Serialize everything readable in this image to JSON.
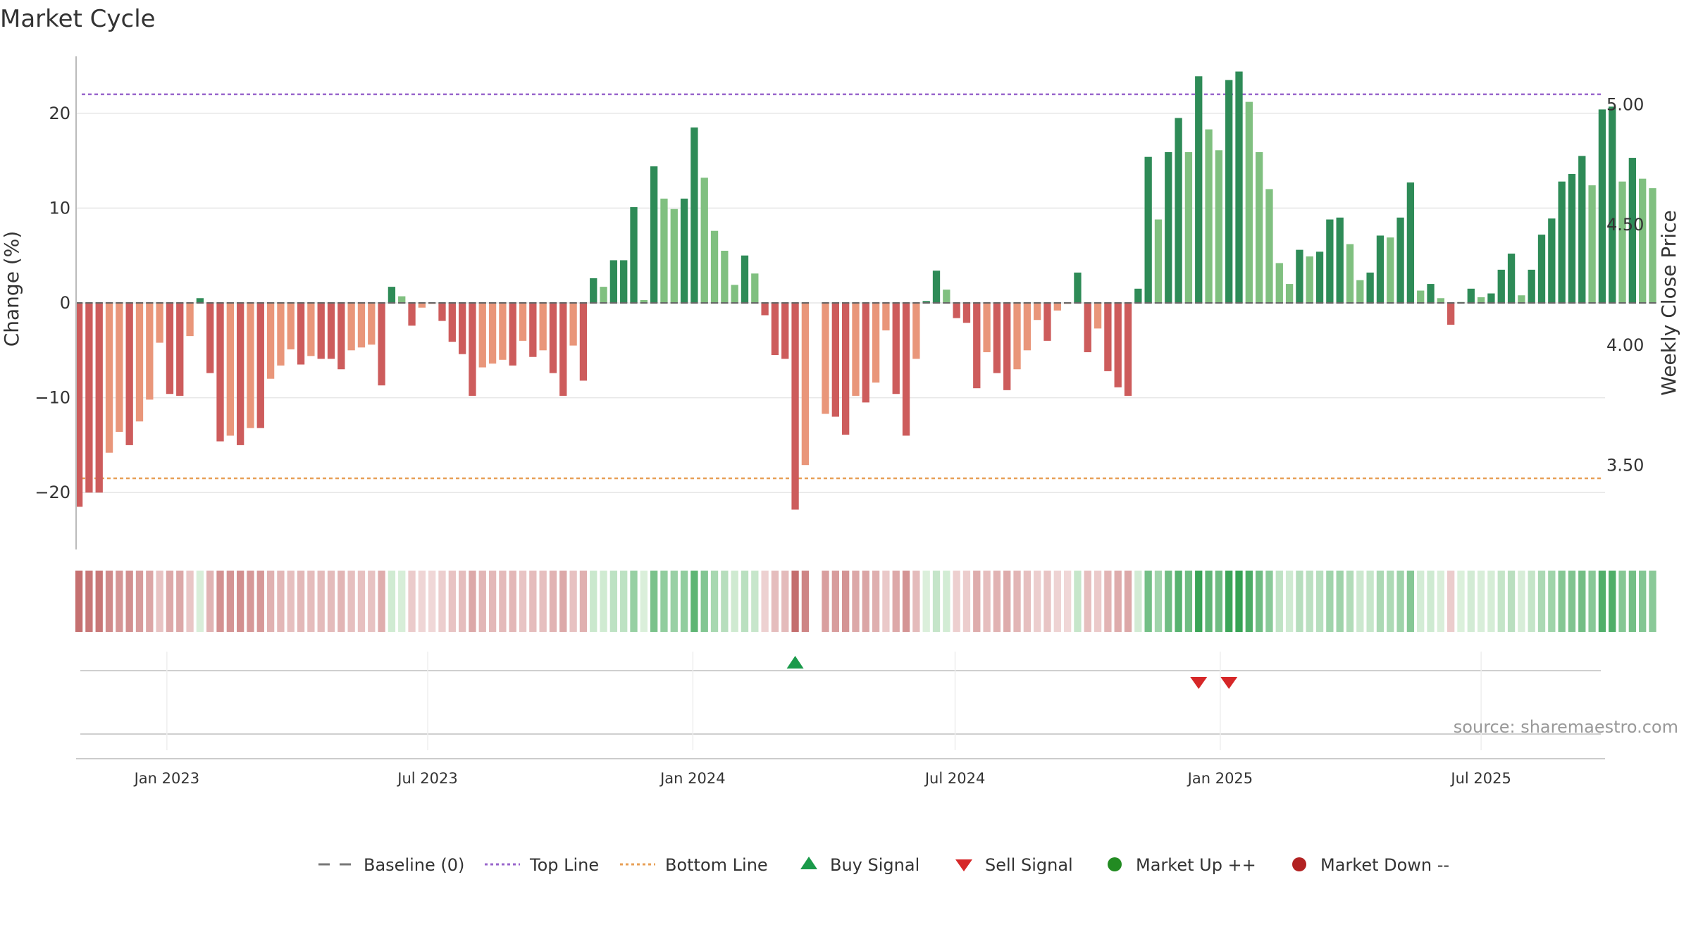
{
  "chart_data": {
    "type": "bar",
    "title": "Market Cycle",
    "ylabel_left": "Change (%)",
    "ylabel_right": "Weekly Close Price",
    "y_left_ticks": [
      "20",
      "10",
      "0",
      "−10",
      "−20"
    ],
    "y_left_tick_values": [
      20,
      10,
      0,
      -10,
      -20
    ],
    "y_right_ticks": [
      "5.00",
      "4.50",
      "4.00",
      "3.50"
    ],
    "y_right_tick_values": [
      5.0,
      4.5,
      4.0,
      3.5
    ],
    "ylim_left": [
      -26,
      26
    ],
    "ylim_right": [
      3.15,
      5.2
    ],
    "x_ticks": [
      "Jan 2023",
      "Jul 2023",
      "Jan 2024",
      "Jul 2024",
      "Jan 2025",
      "Jul 2025"
    ],
    "x_tick_values": [
      "2023-01-01",
      "2023-07-01",
      "2024-01-01",
      "2024-07-01",
      "2025-01-01",
      "2025-07-01"
    ],
    "x_range": [
      "2022-10-30",
      "2025-09-25"
    ],
    "top_line": 22,
    "bottom_line": -18.5,
    "series": [
      {
        "x": "2022-11-01",
        "y": -21.5,
        "shade": "dark"
      },
      {
        "x": "2022-11-08",
        "y": -20.0,
        "shade": "dark"
      },
      {
        "x": "2022-11-15",
        "y": -20.0,
        "shade": "dark"
      },
      {
        "x": "2022-11-22",
        "y": -15.8,
        "shade": "light"
      },
      {
        "x": "2022-11-29",
        "y": -13.6,
        "shade": "light"
      },
      {
        "x": "2022-12-06",
        "y": -15.0,
        "shade": "dark"
      },
      {
        "x": "2022-12-13",
        "y": -12.5,
        "shade": "light"
      },
      {
        "x": "2022-12-20",
        "y": -10.2,
        "shade": "light"
      },
      {
        "x": "2022-12-27",
        "y": -4.2,
        "shade": "light"
      },
      {
        "x": "2023-01-03",
        "y": -9.6,
        "shade": "dark"
      },
      {
        "x": "2023-01-10",
        "y": -9.8,
        "shade": "dark"
      },
      {
        "x": "2023-01-17",
        "y": -3.5,
        "shade": "light"
      },
      {
        "x": "2023-01-24",
        "y": 0.5,
        "shade": "dark"
      },
      {
        "x": "2023-01-31",
        "y": -7.4,
        "shade": "dark"
      },
      {
        "x": "2023-02-07",
        "y": -14.6,
        "shade": "dark"
      },
      {
        "x": "2023-02-14",
        "y": -14.0,
        "shade": "light"
      },
      {
        "x": "2023-02-21",
        "y": -15.0,
        "shade": "dark"
      },
      {
        "x": "2023-02-28",
        "y": -13.2,
        "shade": "light"
      },
      {
        "x": "2023-03-07",
        "y": -13.2,
        "shade": "dark"
      },
      {
        "x": "2023-03-14",
        "y": -8.0,
        "shade": "light"
      },
      {
        "x": "2023-03-21",
        "y": -6.6,
        "shade": "light"
      },
      {
        "x": "2023-03-28",
        "y": -4.9,
        "shade": "light"
      },
      {
        "x": "2023-04-04",
        "y": -6.5,
        "shade": "dark"
      },
      {
        "x": "2023-04-11",
        "y": -5.6,
        "shade": "light"
      },
      {
        "x": "2023-04-18",
        "y": -5.9,
        "shade": "dark"
      },
      {
        "x": "2023-04-25",
        "y": -5.9,
        "shade": "dark"
      },
      {
        "x": "2023-05-02",
        "y": -7.0,
        "shade": "dark"
      },
      {
        "x": "2023-05-09",
        "y": -5.0,
        "shade": "light"
      },
      {
        "x": "2023-05-16",
        "y": -4.7,
        "shade": "light"
      },
      {
        "x": "2023-05-23",
        "y": -4.4,
        "shade": "light"
      },
      {
        "x": "2023-05-30",
        "y": -8.7,
        "shade": "dark"
      },
      {
        "x": "2023-06-06",
        "y": 1.7,
        "shade": "dark"
      },
      {
        "x": "2023-06-13",
        "y": 0.7,
        "shade": "light"
      },
      {
        "x": "2023-06-20",
        "y": -2.4,
        "shade": "dark"
      },
      {
        "x": "2023-06-27",
        "y": -0.5,
        "shade": "light"
      },
      {
        "x": "2023-07-04",
        "y": -0.1,
        "shade": "light"
      },
      {
        "x": "2023-07-11",
        "y": -1.9,
        "shade": "dark"
      },
      {
        "x": "2023-07-18",
        "y": -4.1,
        "shade": "dark"
      },
      {
        "x": "2023-07-25",
        "y": -5.4,
        "shade": "dark"
      },
      {
        "x": "2023-08-01",
        "y": -9.8,
        "shade": "dark"
      },
      {
        "x": "2023-08-08",
        "y": -6.8,
        "shade": "light"
      },
      {
        "x": "2023-08-15",
        "y": -6.4,
        "shade": "light"
      },
      {
        "x": "2023-08-22",
        "y": -6.0,
        "shade": "light"
      },
      {
        "x": "2023-08-29",
        "y": -6.6,
        "shade": "dark"
      },
      {
        "x": "2023-09-05",
        "y": -4.0,
        "shade": "light"
      },
      {
        "x": "2023-09-12",
        "y": -5.7,
        "shade": "dark"
      },
      {
        "x": "2023-09-19",
        "y": -5.0,
        "shade": "light"
      },
      {
        "x": "2023-09-26",
        "y": -7.4,
        "shade": "dark"
      },
      {
        "x": "2023-10-03",
        "y": -9.8,
        "shade": "dark"
      },
      {
        "x": "2023-10-10",
        "y": -4.5,
        "shade": "light"
      },
      {
        "x": "2023-10-17",
        "y": -8.2,
        "shade": "dark"
      },
      {
        "x": "2023-10-24",
        "y": 2.6,
        "shade": "dark"
      },
      {
        "x": "2023-10-31",
        "y": 1.7,
        "shade": "light"
      },
      {
        "x": "2023-11-07",
        "y": 4.5,
        "shade": "dark"
      },
      {
        "x": "2023-11-14",
        "y": 4.5,
        "shade": "dark"
      },
      {
        "x": "2023-11-21",
        "y": 10.1,
        "shade": "dark"
      },
      {
        "x": "2023-11-28",
        "y": 0.3,
        "shade": "light"
      },
      {
        "x": "2023-12-05",
        "y": 14.4,
        "shade": "dark"
      },
      {
        "x": "2023-12-12",
        "y": 11.0,
        "shade": "light"
      },
      {
        "x": "2023-12-19",
        "y": 9.9,
        "shade": "light"
      },
      {
        "x": "2023-12-26",
        "y": 11.0,
        "shade": "dark"
      },
      {
        "x": "2024-01-02",
        "y": 18.5,
        "shade": "dark"
      },
      {
        "x": "2024-01-09",
        "y": 13.2,
        "shade": "light"
      },
      {
        "x": "2024-01-16",
        "y": 7.6,
        "shade": "light"
      },
      {
        "x": "2024-01-23",
        "y": 5.5,
        "shade": "light"
      },
      {
        "x": "2024-01-30",
        "y": 1.9,
        "shade": "light"
      },
      {
        "x": "2024-02-06",
        "y": 5.0,
        "shade": "dark"
      },
      {
        "x": "2024-02-13",
        "y": 3.1,
        "shade": "light"
      },
      {
        "x": "2024-02-20",
        "y": -1.3,
        "shade": "dark"
      },
      {
        "x": "2024-02-27",
        "y": -5.5,
        "shade": "dark"
      },
      {
        "x": "2024-03-05",
        "y": -5.9,
        "shade": "dark"
      },
      {
        "x": "2024-03-12",
        "y": -21.8,
        "shade": "dark"
      },
      {
        "x": "2024-03-19",
        "y": -17.1,
        "shade": "light"
      },
      {
        "x": "2024-03-26",
        "y": null,
        "shade": "light"
      },
      {
        "x": "2024-04-02",
        "y": -11.7,
        "shade": "light"
      },
      {
        "x": "2024-04-09",
        "y": -12.0,
        "shade": "dark"
      },
      {
        "x": "2024-04-16",
        "y": -13.9,
        "shade": "dark"
      },
      {
        "x": "2024-04-23",
        "y": -9.8,
        "shade": "light"
      },
      {
        "x": "2024-04-30",
        "y": -10.5,
        "shade": "dark"
      },
      {
        "x": "2024-05-07",
        "y": -8.4,
        "shade": "light"
      },
      {
        "x": "2024-05-14",
        "y": -2.9,
        "shade": "light"
      },
      {
        "x": "2024-05-21",
        "y": -9.6,
        "shade": "dark"
      },
      {
        "x": "2024-05-28",
        "y": -14.0,
        "shade": "dark"
      },
      {
        "x": "2024-06-04",
        "y": -5.9,
        "shade": "light"
      },
      {
        "x": "2024-06-11",
        "y": 0.2,
        "shade": "dark"
      },
      {
        "x": "2024-06-18",
        "y": 3.4,
        "shade": "dark"
      },
      {
        "x": "2024-06-25",
        "y": 1.4,
        "shade": "light"
      },
      {
        "x": "2024-07-02",
        "y": -1.6,
        "shade": "dark"
      },
      {
        "x": "2024-07-09",
        "y": -2.1,
        "shade": "dark"
      },
      {
        "x": "2024-07-16",
        "y": -9.0,
        "shade": "dark"
      },
      {
        "x": "2024-07-23",
        "y": -5.2,
        "shade": "light"
      },
      {
        "x": "2024-07-30",
        "y": -7.4,
        "shade": "dark"
      },
      {
        "x": "2024-08-06",
        "y": -9.2,
        "shade": "dark"
      },
      {
        "x": "2024-08-13",
        "y": -7.0,
        "shade": "light"
      },
      {
        "x": "2024-08-20",
        "y": -5.0,
        "shade": "light"
      },
      {
        "x": "2024-08-27",
        "y": -1.8,
        "shade": "light"
      },
      {
        "x": "2024-09-03",
        "y": -4.0,
        "shade": "dark"
      },
      {
        "x": "2024-09-10",
        "y": -0.8,
        "shade": "light"
      },
      {
        "x": "2024-09-17",
        "y": -0.1,
        "shade": "light"
      },
      {
        "x": "2024-09-24",
        "y": 3.2,
        "shade": "dark"
      },
      {
        "x": "2024-10-01",
        "y": -5.2,
        "shade": "dark"
      },
      {
        "x": "2024-10-08",
        "y": -2.7,
        "shade": "light"
      },
      {
        "x": "2024-10-15",
        "y": -7.2,
        "shade": "dark"
      },
      {
        "x": "2024-10-22",
        "y": -8.9,
        "shade": "dark"
      },
      {
        "x": "2024-10-29",
        "y": -9.8,
        "shade": "dark"
      },
      {
        "x": "2024-11-05",
        "y": 1.5,
        "shade": "dark"
      },
      {
        "x": "2024-11-12",
        "y": 15.4,
        "shade": "dark"
      },
      {
        "x": "2024-11-19",
        "y": 8.8,
        "shade": "light"
      },
      {
        "x": "2024-11-26",
        "y": 15.9,
        "shade": "dark"
      },
      {
        "x": "2024-12-03",
        "y": 19.5,
        "shade": "dark"
      },
      {
        "x": "2024-12-10",
        "y": 15.9,
        "shade": "light"
      },
      {
        "x": "2024-12-17",
        "y": 23.9,
        "shade": "dark"
      },
      {
        "x": "2024-12-24",
        "y": 18.3,
        "shade": "light"
      },
      {
        "x": "2024-12-31",
        "y": 16.1,
        "shade": "light"
      },
      {
        "x": "2025-01-07",
        "y": 23.5,
        "shade": "dark"
      },
      {
        "x": "2025-01-14",
        "y": 24.4,
        "shade": "dark"
      },
      {
        "x": "2025-01-21",
        "y": 21.2,
        "shade": "light"
      },
      {
        "x": "2025-01-28",
        "y": 15.9,
        "shade": "light"
      },
      {
        "x": "2025-02-04",
        "y": 12.0,
        "shade": "light"
      },
      {
        "x": "2025-02-11",
        "y": 4.2,
        "shade": "light"
      },
      {
        "x": "2025-02-18",
        "y": 2.0,
        "shade": "light"
      },
      {
        "x": "2025-02-25",
        "y": 5.6,
        "shade": "dark"
      },
      {
        "x": "2025-03-04",
        "y": 4.9,
        "shade": "light"
      },
      {
        "x": "2025-03-11",
        "y": 5.4,
        "shade": "dark"
      },
      {
        "x": "2025-03-18",
        "y": 8.8,
        "shade": "dark"
      },
      {
        "x": "2025-03-25",
        "y": 9.0,
        "shade": "dark"
      },
      {
        "x": "2025-04-01",
        "y": 6.2,
        "shade": "light"
      },
      {
        "x": "2025-04-08",
        "y": 2.4,
        "shade": "light"
      },
      {
        "x": "2025-04-15",
        "y": 3.2,
        "shade": "dark"
      },
      {
        "x": "2025-04-22",
        "y": 7.1,
        "shade": "dark"
      },
      {
        "x": "2025-04-29",
        "y": 6.9,
        "shade": "light"
      },
      {
        "x": "2025-05-06",
        "y": 9.0,
        "shade": "dark"
      },
      {
        "x": "2025-05-13",
        "y": 12.7,
        "shade": "dark"
      },
      {
        "x": "2025-05-20",
        "y": 1.3,
        "shade": "light"
      },
      {
        "x": "2025-05-27",
        "y": 2.0,
        "shade": "dark"
      },
      {
        "x": "2025-06-03",
        "y": 0.5,
        "shade": "light"
      },
      {
        "x": "2025-06-10",
        "y": -2.3,
        "shade": "dark"
      },
      {
        "x": "2025-06-17",
        "y": 0.1,
        "shade": "light"
      },
      {
        "x": "2025-06-24",
        "y": 1.5,
        "shade": "dark"
      },
      {
        "x": "2025-07-01",
        "y": 0.6,
        "shade": "light"
      },
      {
        "x": "2025-07-08",
        "y": 1.0,
        "shade": "dark"
      },
      {
        "x": "2025-07-15",
        "y": 3.5,
        "shade": "dark"
      },
      {
        "x": "2025-07-22",
        "y": 5.2,
        "shade": "dark"
      },
      {
        "x": "2025-07-29",
        "y": 0.8,
        "shade": "light"
      },
      {
        "x": "2025-08-05",
        "y": 3.5,
        "shade": "dark"
      },
      {
        "x": "2025-08-12",
        "y": 7.2,
        "shade": "dark"
      },
      {
        "x": "2025-08-19",
        "y": 8.9,
        "shade": "dark"
      },
      {
        "x": "2025-08-26",
        "y": 12.8,
        "shade": "dark"
      },
      {
        "x": "2025-09-02",
        "y": 13.6,
        "shade": "dark"
      },
      {
        "x": "2025-09-09",
        "y": 15.5,
        "shade": "dark"
      },
      {
        "x": "2025-09-16",
        "y": 12.4,
        "shade": "light"
      },
      {
        "x": "2025-09-23",
        "y": 20.4,
        "shade": "dark"
      },
      {
        "x": "2025-09-30",
        "y": 20.7,
        "shade": "dark"
      },
      {
        "x": "2025-10-07",
        "y": 12.8,
        "shade": "light"
      },
      {
        "x": "2025-10-14",
        "y": 15.3,
        "shade": "dark"
      },
      {
        "x": "2025-10-21",
        "y": 13.1,
        "shade": "light"
      },
      {
        "x": "2025-10-28",
        "y": 12.1,
        "shade": "light"
      }
    ],
    "buy_signals": [
      "2024-03-12"
    ],
    "sell_signals": [
      "2024-12-17",
      "2025-01-07"
    ],
    "grid": true,
    "legend_position": "bottom",
    "legend": [
      {
        "label": "Baseline (0)",
        "marker": "dash",
        "color": "#777777"
      },
      {
        "label": "Top Line",
        "marker": "dotted",
        "color": "#9966cc"
      },
      {
        "label": "Bottom Line",
        "marker": "dotted",
        "color": "#e8a057"
      },
      {
        "label": "Buy Signal",
        "marker": "triangle-up",
        "color": "#1a9a4a"
      },
      {
        "label": "Sell Signal",
        "marker": "triangle-down",
        "color": "#d62728"
      },
      {
        "label": "Market Up ++",
        "marker": "circle",
        "color": "#228b22"
      },
      {
        "label": "Market Down --",
        "marker": "circle",
        "color": "#b22222"
      }
    ],
    "source": "source: sharemaestro.com",
    "colors": {
      "pos_dark": "#2e8b57",
      "pos_light": "#80c080",
      "neg_dark": "#cd5c5c",
      "neg_light": "#e9967a",
      "top_line": "#9966cc",
      "bottom_line": "#e8a057",
      "buy": "#1a9a4a",
      "sell": "#d62728"
    }
  }
}
